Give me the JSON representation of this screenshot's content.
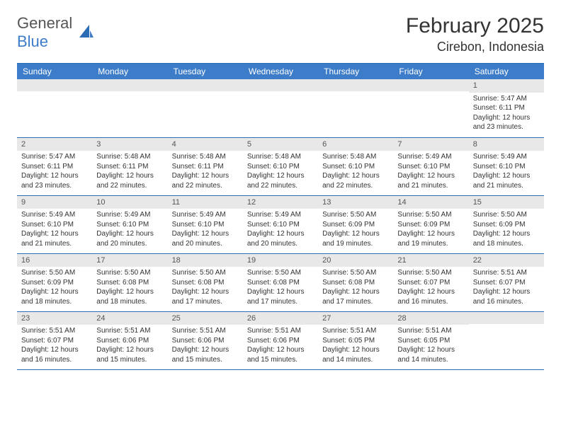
{
  "logo": {
    "general": "General",
    "blue": "Blue"
  },
  "title": "February 2025",
  "location": "Cirebon, Indonesia",
  "header_color": "#3d7cc9",
  "border_color": "#2a6db5",
  "daynum_bg": "#e8e8e8",
  "weekdays": [
    "Sunday",
    "Monday",
    "Tuesday",
    "Wednesday",
    "Thursday",
    "Friday",
    "Saturday"
  ],
  "weeks": [
    [
      null,
      null,
      null,
      null,
      null,
      null,
      {
        "n": "1",
        "sr": "Sunrise: 5:47 AM",
        "ss": "Sunset: 6:11 PM",
        "d1": "Daylight: 12 hours",
        "d2": "and 23 minutes."
      }
    ],
    [
      {
        "n": "2",
        "sr": "Sunrise: 5:47 AM",
        "ss": "Sunset: 6:11 PM",
        "d1": "Daylight: 12 hours",
        "d2": "and 23 minutes."
      },
      {
        "n": "3",
        "sr": "Sunrise: 5:48 AM",
        "ss": "Sunset: 6:11 PM",
        "d1": "Daylight: 12 hours",
        "d2": "and 22 minutes."
      },
      {
        "n": "4",
        "sr": "Sunrise: 5:48 AM",
        "ss": "Sunset: 6:11 PM",
        "d1": "Daylight: 12 hours",
        "d2": "and 22 minutes."
      },
      {
        "n": "5",
        "sr": "Sunrise: 5:48 AM",
        "ss": "Sunset: 6:10 PM",
        "d1": "Daylight: 12 hours",
        "d2": "and 22 minutes."
      },
      {
        "n": "6",
        "sr": "Sunrise: 5:48 AM",
        "ss": "Sunset: 6:10 PM",
        "d1": "Daylight: 12 hours",
        "d2": "and 22 minutes."
      },
      {
        "n": "7",
        "sr": "Sunrise: 5:49 AM",
        "ss": "Sunset: 6:10 PM",
        "d1": "Daylight: 12 hours",
        "d2": "and 21 minutes."
      },
      {
        "n": "8",
        "sr": "Sunrise: 5:49 AM",
        "ss": "Sunset: 6:10 PM",
        "d1": "Daylight: 12 hours",
        "d2": "and 21 minutes."
      }
    ],
    [
      {
        "n": "9",
        "sr": "Sunrise: 5:49 AM",
        "ss": "Sunset: 6:10 PM",
        "d1": "Daylight: 12 hours",
        "d2": "and 21 minutes."
      },
      {
        "n": "10",
        "sr": "Sunrise: 5:49 AM",
        "ss": "Sunset: 6:10 PM",
        "d1": "Daylight: 12 hours",
        "d2": "and 20 minutes."
      },
      {
        "n": "11",
        "sr": "Sunrise: 5:49 AM",
        "ss": "Sunset: 6:10 PM",
        "d1": "Daylight: 12 hours",
        "d2": "and 20 minutes."
      },
      {
        "n": "12",
        "sr": "Sunrise: 5:49 AM",
        "ss": "Sunset: 6:10 PM",
        "d1": "Daylight: 12 hours",
        "d2": "and 20 minutes."
      },
      {
        "n": "13",
        "sr": "Sunrise: 5:50 AM",
        "ss": "Sunset: 6:09 PM",
        "d1": "Daylight: 12 hours",
        "d2": "and 19 minutes."
      },
      {
        "n": "14",
        "sr": "Sunrise: 5:50 AM",
        "ss": "Sunset: 6:09 PM",
        "d1": "Daylight: 12 hours",
        "d2": "and 19 minutes."
      },
      {
        "n": "15",
        "sr": "Sunrise: 5:50 AM",
        "ss": "Sunset: 6:09 PM",
        "d1": "Daylight: 12 hours",
        "d2": "and 18 minutes."
      }
    ],
    [
      {
        "n": "16",
        "sr": "Sunrise: 5:50 AM",
        "ss": "Sunset: 6:09 PM",
        "d1": "Daylight: 12 hours",
        "d2": "and 18 minutes."
      },
      {
        "n": "17",
        "sr": "Sunrise: 5:50 AM",
        "ss": "Sunset: 6:08 PM",
        "d1": "Daylight: 12 hours",
        "d2": "and 18 minutes."
      },
      {
        "n": "18",
        "sr": "Sunrise: 5:50 AM",
        "ss": "Sunset: 6:08 PM",
        "d1": "Daylight: 12 hours",
        "d2": "and 17 minutes."
      },
      {
        "n": "19",
        "sr": "Sunrise: 5:50 AM",
        "ss": "Sunset: 6:08 PM",
        "d1": "Daylight: 12 hours",
        "d2": "and 17 minutes."
      },
      {
        "n": "20",
        "sr": "Sunrise: 5:50 AM",
        "ss": "Sunset: 6:08 PM",
        "d1": "Daylight: 12 hours",
        "d2": "and 17 minutes."
      },
      {
        "n": "21",
        "sr": "Sunrise: 5:50 AM",
        "ss": "Sunset: 6:07 PM",
        "d1": "Daylight: 12 hours",
        "d2": "and 16 minutes."
      },
      {
        "n": "22",
        "sr": "Sunrise: 5:51 AM",
        "ss": "Sunset: 6:07 PM",
        "d1": "Daylight: 12 hours",
        "d2": "and 16 minutes."
      }
    ],
    [
      {
        "n": "23",
        "sr": "Sunrise: 5:51 AM",
        "ss": "Sunset: 6:07 PM",
        "d1": "Daylight: 12 hours",
        "d2": "and 16 minutes."
      },
      {
        "n": "24",
        "sr": "Sunrise: 5:51 AM",
        "ss": "Sunset: 6:06 PM",
        "d1": "Daylight: 12 hours",
        "d2": "and 15 minutes."
      },
      {
        "n": "25",
        "sr": "Sunrise: 5:51 AM",
        "ss": "Sunset: 6:06 PM",
        "d1": "Daylight: 12 hours",
        "d2": "and 15 minutes."
      },
      {
        "n": "26",
        "sr": "Sunrise: 5:51 AM",
        "ss": "Sunset: 6:06 PM",
        "d1": "Daylight: 12 hours",
        "d2": "and 15 minutes."
      },
      {
        "n": "27",
        "sr": "Sunrise: 5:51 AM",
        "ss": "Sunset: 6:05 PM",
        "d1": "Daylight: 12 hours",
        "d2": "and 14 minutes."
      },
      {
        "n": "28",
        "sr": "Sunrise: 5:51 AM",
        "ss": "Sunset: 6:05 PM",
        "d1": "Daylight: 12 hours",
        "d2": "and 14 minutes."
      },
      null
    ]
  ]
}
